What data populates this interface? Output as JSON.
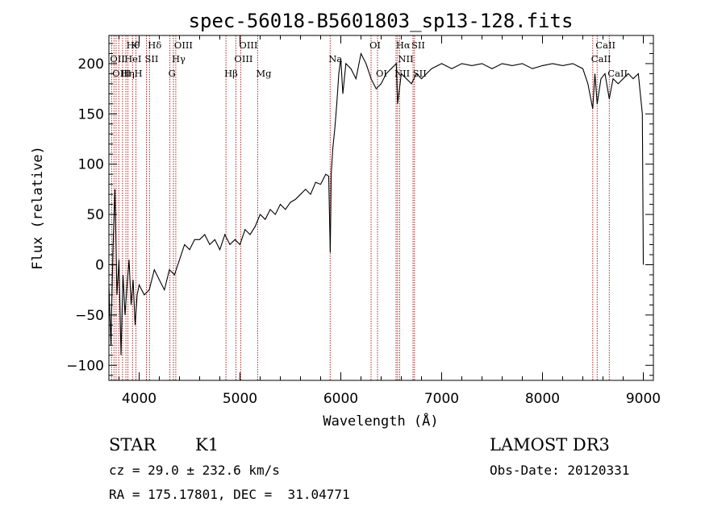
{
  "chart_data": {
    "type": "line",
    "title": "spec-56018-B5601803_sp13-128.fits",
    "xlabel": "Wavelength (Å)",
    "ylabel": "Flux (relative)",
    "xlim": [
      3700,
      9100
    ],
    "ylim": [
      -115,
      228
    ],
    "xticks": [
      4000,
      5000,
      6000,
      7000,
      8000,
      9000
    ],
    "yticks": [
      -100,
      -50,
      0,
      50,
      100,
      150,
      200
    ],
    "grid": false,
    "series": [
      {
        "x": [
          3700,
          3720,
          3740,
          3760,
          3780,
          3800,
          3820,
          3840,
          3860,
          3880,
          3900,
          3920,
          3940,
          3960,
          3980,
          4000,
          4050,
          4100,
          4150,
          4200,
          4250,
          4300,
          4350,
          4400,
          4450,
          4500,
          4550,
          4600,
          4650,
          4700,
          4750,
          4800,
          4850,
          4900,
          4950,
          5000,
          5050,
          5100,
          5150,
          5200,
          5250,
          5300,
          5350,
          5400,
          5450,
          5500,
          5550,
          5600,
          5650,
          5700,
          5750,
          5800,
          5850,
          5880,
          5895,
          5905,
          5920,
          5940,
          5960,
          5980,
          6000,
          6020,
          6050,
          6100,
          6150,
          6200,
          6250,
          6300,
          6350,
          6400,
          6450,
          6500,
          6550,
          6563,
          6600,
          6650,
          6700,
          6750,
          6800,
          6850,
          6900,
          7000,
          7100,
          7200,
          7300,
          7400,
          7500,
          7600,
          7700,
          7800,
          7900,
          8000,
          8100,
          8200,
          8300,
          8400,
          8450,
          8498,
          8520,
          8542,
          8580,
          8620,
          8662,
          8700,
          8750,
          8800,
          8850,
          8900,
          8950,
          8990,
          9000
        ],
        "y": [
          -20,
          -80,
          15,
          75,
          -30,
          5,
          -90,
          -10,
          -50,
          -20,
          5,
          -40,
          -15,
          -60,
          -30,
          -20,
          -30,
          -25,
          -5,
          -15,
          -25,
          -5,
          -10,
          5,
          20,
          15,
          25,
          25,
          30,
          20,
          25,
          15,
          30,
          20,
          25,
          20,
          35,
          30,
          38,
          50,
          45,
          55,
          50,
          60,
          55,
          62,
          65,
          70,
          75,
          70,
          82,
          80,
          90,
          88,
          12,
          90,
          115,
          135,
          160,
          190,
          205,
          170,
          200,
          195,
          185,
          210,
          200,
          185,
          175,
          180,
          190,
          195,
          200,
          160,
          190,
          185,
          180,
          190,
          185,
          190,
          195,
          200,
          195,
          200,
          198,
          200,
          195,
          200,
          198,
          200,
          195,
          198,
          200,
          198,
          200,
          195,
          180,
          155,
          190,
          160,
          185,
          190,
          165,
          185,
          180,
          185,
          190,
          185,
          190,
          150,
          0
        ]
      }
    ],
    "lines": [
      {
        "w": 3727,
        "label": "OII",
        "row": 1
      },
      {
        "w": 3750,
        "label": "OIII",
        "row": 2
      },
      {
        "w": 3771,
        "label": "",
        "row": 0
      },
      {
        "w": 3798,
        "label": "",
        "row": 0
      },
      {
        "w": 3835,
        "label": "Hη",
        "row": 2
      },
      {
        "w": 3869,
        "label": "HeI",
        "row": 1
      },
      {
        "w": 3889,
        "label": "Hθ",
        "row": 0
      },
      {
        "w": 3934,
        "label": "K",
        "row": 0
      },
      {
        "w": 3968,
        "label": "H",
        "row": 2
      },
      {
        "w": 4072,
        "label": "SII",
        "row": 1
      },
      {
        "w": 4102,
        "label": "Hδ",
        "row": 0
      },
      {
        "w": 4305,
        "label": "G",
        "row": 2
      },
      {
        "w": 4340,
        "label": "Hγ",
        "row": 1
      },
      {
        "w": 4363,
        "label": "OIII",
        "row": 0
      },
      {
        "w": 4861,
        "label": "Hβ",
        "row": 2
      },
      {
        "w": 4959,
        "label": "OIII",
        "row": 1
      },
      {
        "w": 5007,
        "label": "OIII",
        "row": 0
      },
      {
        "w": 5175,
        "label": "Mg",
        "row": 2
      },
      {
        "w": 5894,
        "label": "Na",
        "row": 1
      },
      {
        "w": 6300,
        "label": "OI",
        "row": 0
      },
      {
        "w": 6364,
        "label": "OI",
        "row": 2
      },
      {
        "w": 6548,
        "label": "NII",
        "row": 2
      },
      {
        "w": 6563,
        "label": "Hα",
        "row": 0
      },
      {
        "w": 6583,
        "label": "NII",
        "row": 1
      },
      {
        "w": 6716,
        "label": "SII",
        "row": 0
      },
      {
        "w": 6730,
        "label": "SII",
        "row": 2
      },
      {
        "w": 8498,
        "label": "CaII",
        "row": 1
      },
      {
        "w": 8542,
        "label": "CaII",
        "row": 0
      },
      {
        "w": 8662,
        "label": "CaII",
        "row": 2
      }
    ],
    "line_color": "#b22222",
    "spectrum_color": "#000000"
  },
  "info": {
    "object_type": "STAR",
    "subclass": "K1",
    "survey": "LAMOST DR3",
    "redshift": "cz = 29.0 ± 232.6 km/s",
    "obs_date": "Obs-Date: 20120331",
    "coords": "RA = 175.17801, DEC =  31.04771"
  }
}
